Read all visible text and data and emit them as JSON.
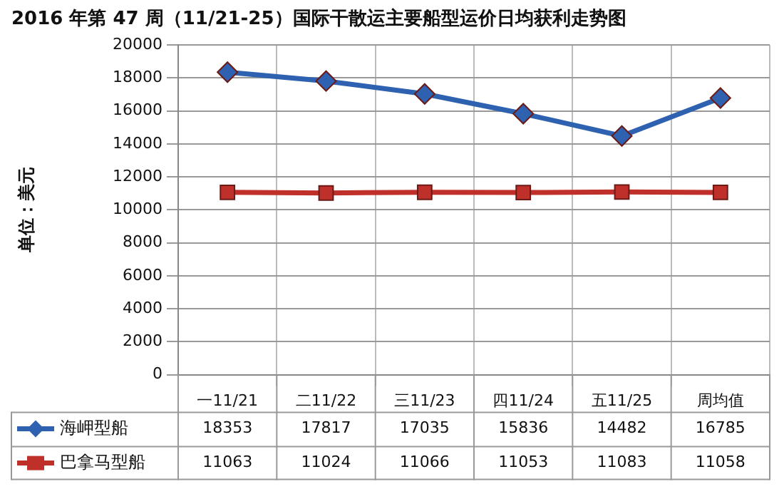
{
  "chart_data": {
    "type": "line",
    "title": "2016 年第 47 周（11/21-25）国际干散运主要船型运价日均获利走势图",
    "ylabel": "单位：美元",
    "categories": [
      "一11/21",
      "二11/22",
      "三11/23",
      "四11/24",
      "五11/25",
      "周均值"
    ],
    "series": [
      {
        "name": "海岬型船",
        "color": "#2e62b0",
        "marker": "diamond",
        "values": [
          18353,
          17817,
          17035,
          15836,
          14482,
          16785
        ]
      },
      {
        "name": "巴拿马型船",
        "color": "#c0302a",
        "marker": "square",
        "values": [
          11063,
          11024,
          11066,
          11053,
          11083,
          11058
        ]
      }
    ],
    "ylim": [
      0,
      20000
    ],
    "yticks": [
      0,
      2000,
      4000,
      6000,
      8000,
      10000,
      12000,
      14000,
      16000,
      18000,
      20000
    ],
    "grid": true,
    "legend": "bottom",
    "data_labels": true,
    "line_style": "solid"
  }
}
